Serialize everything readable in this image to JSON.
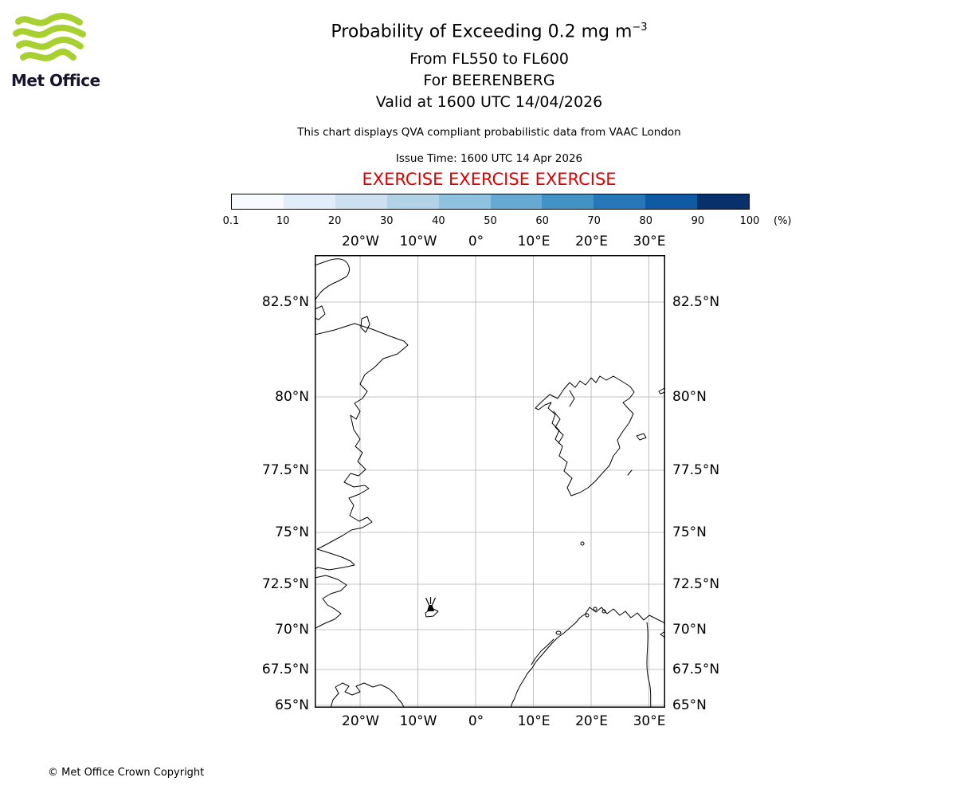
{
  "logo": {
    "text": "Met Office",
    "wave_color": "#a8d030",
    "text_color": "#19142e"
  },
  "header": {
    "title": "Probability of Exceeding 0.2 mg m",
    "title_exponent": "−3",
    "level_line": "From FL550 to FL600",
    "volcano_line": "For BEERENBERG",
    "valid_line": "Valid at 1600 UTC 14/04/2026",
    "description": "This chart displays QVA compliant probabilistic data from VAAC London",
    "issue_time": "Issue Time: 1600 UTC 14 Apr 2026",
    "exercise_banner": "EXERCISE EXERCISE EXERCISE",
    "exercise_color": "#dd0000"
  },
  "colorbar": {
    "tick_labels": [
      "0.1",
      "10",
      "20",
      "30",
      "40",
      "50",
      "60",
      "70",
      "80",
      "90",
      "100"
    ],
    "unit_label": "(%)",
    "segment_colors": [
      "#f7fbff",
      "#e1edf8",
      "#cde0f1",
      "#b2d2e8",
      "#8fc2de",
      "#66a9d2",
      "#4292c6",
      "#2676b8",
      "#0f5aa3",
      "#08306b"
    ]
  },
  "map": {
    "lon_labels": [
      "20°W",
      "10°W",
      "0°",
      "10°E",
      "20°E",
      "30°E"
    ],
    "lat_labels": [
      "82.5°N",
      "80°N",
      "77.5°N",
      "75°N",
      "72.5°N",
      "70°N",
      "67.5°N",
      "65°N"
    ],
    "marker": "volcano-eruption-symbol"
  },
  "footer": {
    "copyright": "© Met Office Crown Copyright"
  }
}
